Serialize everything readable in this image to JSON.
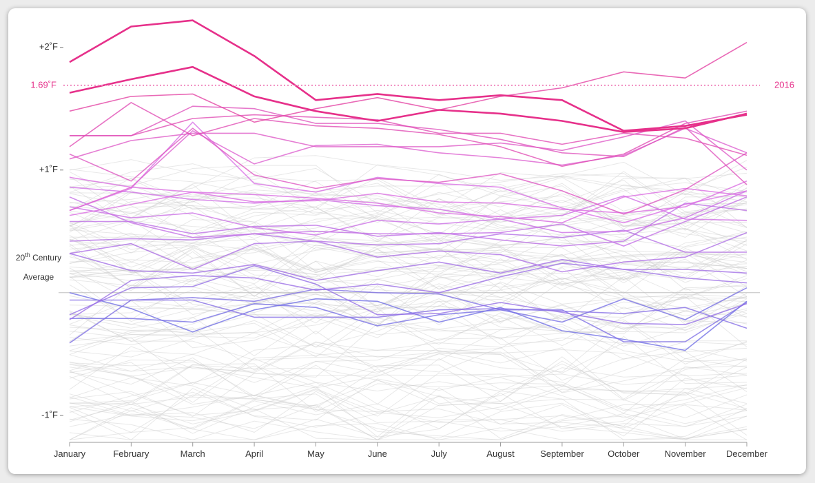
{
  "chart_data": {
    "type": "line",
    "title": "",
    "xlabel": "",
    "ylabel": "",
    "categories": [
      "January",
      "February",
      "March",
      "April",
      "May",
      "June",
      "July",
      "August",
      "September",
      "October",
      "November",
      "December"
    ],
    "y_ticks": [
      {
        "value": 2,
        "label": "+2˚F"
      },
      {
        "value": 1,
        "label": "+1˚F"
      },
      {
        "value": -1,
        "label": "-1˚F"
      }
    ],
    "ylim": [
      -1.22,
      2.24
    ],
    "baseline": {
      "value": 0,
      "label_line1": "20",
      "label_sup": "th",
      "label_line1_rest": " Century",
      "label_line2": "Average"
    },
    "reference": {
      "value": 1.69,
      "label": "1.69˚F",
      "series_label": "2016"
    },
    "colors": {
      "grey": "#cccccc",
      "low": "#6b6ee6",
      "mid": "#d96ee6",
      "high": "#e6308a",
      "reference": "#f08cc0"
    },
    "highlight_series": [
      {
        "values": [
          1.88,
          2.17,
          2.22,
          1.93,
          1.57,
          1.62,
          1.57,
          1.61,
          1.57,
          1.32,
          1.36,
          1.45
        ],
        "level": 1.0,
        "width": 2.6
      },
      {
        "values": [
          1.63,
          1.74,
          1.84,
          1.6,
          1.48,
          1.4,
          1.49,
          1.46,
          1.4,
          1.31,
          1.34,
          1.46
        ],
        "level": 1.0,
        "width": 2.6
      },
      {
        "values": [
          1.48,
          1.6,
          1.62,
          1.39,
          1.5,
          1.59,
          1.49,
          1.6,
          1.67,
          1.8,
          1.75,
          2.04
        ],
        "level": 0.9,
        "width": 1.6
      },
      {
        "values": [
          1.28,
          1.28,
          1.42,
          1.45,
          1.43,
          1.41,
          1.3,
          1.3,
          1.21,
          1.3,
          1.26,
          1.12
        ],
        "level": 0.82,
        "width": 1.6
      },
      {
        "values": [
          1.19,
          1.55,
          1.28,
          1.42,
          1.36,
          1.34,
          1.29,
          1.19,
          1.03,
          1.13,
          1.38,
          1.48
        ],
        "level": 0.82,
        "width": 1.6
      },
      {
        "values": [
          1.28,
          1.28,
          1.52,
          1.5,
          1.38,
          1.38,
          1.33,
          1.25,
          1.14,
          1.11,
          1.35,
          0.88
        ],
        "level": 0.78,
        "width": 1.6
      },
      {
        "values": [
          1.13,
          0.91,
          1.34,
          0.96,
          0.85,
          0.93,
          0.9,
          0.97,
          0.83,
          0.64,
          0.84,
          1.14
        ],
        "level": 0.76,
        "width": 1.6
      },
      {
        "values": [
          1.09,
          1.24,
          1.3,
          1.3,
          1.19,
          1.19,
          1.19,
          1.22,
          1.16,
          1.27,
          1.4,
          1.0
        ],
        "level": 0.74,
        "width": 1.6
      },
      {
        "values": [
          0.67,
          0.86,
          1.32,
          1.05,
          1.2,
          1.21,
          1.14,
          1.1,
          1.04,
          1.12,
          1.34,
          1.14
        ],
        "level": 0.7,
        "width": 1.6
      },
      {
        "values": [
          0.94,
          0.86,
          0.82,
          0.74,
          0.75,
          0.81,
          0.74,
          0.73,
          0.68,
          0.65,
          0.7,
          0.91
        ],
        "level": 0.62,
        "width": 1.6
      },
      {
        "values": [
          0.63,
          0.72,
          0.82,
          0.8,
          0.77,
          0.73,
          0.65,
          0.62,
          0.57,
          0.78,
          0.85,
          0.79
        ],
        "level": 0.62,
        "width": 1.6
      },
      {
        "values": [
          0.67,
          0.85,
          1.39,
          0.89,
          0.82,
          0.94,
          0.89,
          0.86,
          0.69,
          0.57,
          0.72,
          0.83
        ],
        "level": 0.6,
        "width": 1.6
      },
      {
        "values": [
          0.86,
          0.82,
          0.76,
          0.73,
          0.76,
          0.71,
          0.68,
          0.6,
          0.63,
          0.79,
          0.6,
          0.59
        ],
        "level": 0.55,
        "width": 1.6
      },
      {
        "values": [
          0.7,
          0.61,
          0.65,
          0.53,
          0.47,
          0.59,
          0.56,
          0.6,
          0.49,
          0.5,
          0.61,
          0.83
        ],
        "level": 0.52,
        "width": 1.6
      },
      {
        "values": [
          0.78,
          0.57,
          0.45,
          0.48,
          0.5,
          0.48,
          0.48,
          0.49,
          0.56,
          0.38,
          0.58,
          0.78
        ],
        "level": 0.48,
        "width": 1.6
      },
      {
        "values": [
          0.58,
          0.58,
          0.48,
          0.54,
          0.55,
          0.46,
          0.49,
          0.43,
          0.38,
          0.42,
          0.73,
          0.67
        ],
        "level": 0.44,
        "width": 1.6
      },
      {
        "values": [
          0.42,
          0.44,
          0.43,
          0.48,
          0.42,
          0.39,
          0.4,
          0.48,
          0.45,
          0.51,
          0.33,
          0.33
        ],
        "level": 0.4,
        "width": 1.6
      },
      {
        "values": [
          0.32,
          0.4,
          0.19,
          0.4,
          0.42,
          0.29,
          0.34,
          0.31,
          0.17,
          0.25,
          0.29,
          0.49
        ],
        "level": 0.36,
        "width": 1.6
      },
      {
        "values": [
          0.32,
          0.18,
          0.16,
          0.23,
          0.1,
          0.18,
          0.25,
          0.16,
          0.27,
          0.19,
          0.19,
          0.16
        ],
        "level": 0.3,
        "width": 1.6
      },
      {
        "values": [
          -0.22,
          0.1,
          0.14,
          0.12,
          0.02,
          0.07,
          0.0,
          0.13,
          0.24,
          0.19,
          0.12,
          0.08
        ],
        "level": 0.26,
        "width": 1.6
      },
      {
        "values": [
          -0.18,
          0.04,
          0.05,
          0.22,
          0.07,
          -0.18,
          -0.17,
          -0.08,
          -0.16,
          -0.25,
          -0.26,
          -0.09
        ],
        "level": 0.22,
        "width": 1.6
      },
      {
        "values": [
          -0.06,
          -0.06,
          -0.06,
          -0.2,
          -0.2,
          -0.2,
          -0.14,
          -0.13,
          -0.15,
          -0.17,
          -0.12,
          -0.29
        ],
        "level": 0.14,
        "width": 1.6
      },
      {
        "values": [
          -0.41,
          -0.06,
          -0.04,
          -0.07,
          0.03,
          0.0,
          -0.01,
          -0.14,
          -0.14,
          -0.4,
          -0.4,
          -0.08
        ],
        "level": 0.1,
        "width": 1.6
      },
      {
        "values": [
          -0.21,
          -0.21,
          -0.24,
          -0.09,
          -0.12,
          -0.27,
          -0.18,
          -0.14,
          -0.24,
          -0.05,
          -0.22,
          0.04
        ],
        "level": 0.06,
        "width": 1.6
      },
      {
        "values": [
          0.0,
          -0.13,
          -0.32,
          -0.14,
          -0.05,
          -0.07,
          -0.24,
          -0.12,
          -0.31,
          -0.38,
          -0.47,
          -0.07
        ],
        "level": 0.02,
        "width": 1.6
      }
    ]
  }
}
